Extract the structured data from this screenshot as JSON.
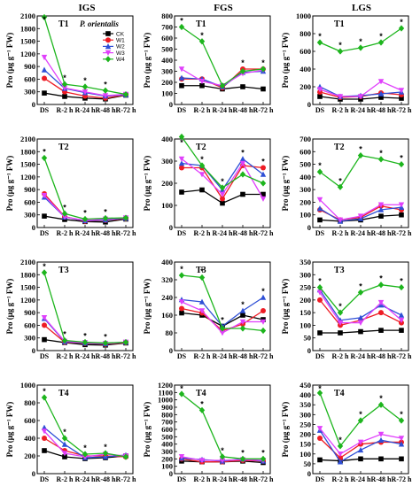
{
  "columns": [
    "IGS",
    "FGS",
    "LGS"
  ],
  "series_styles": [
    {
      "name": "CK",
      "color": "#000000",
      "marker": "square"
    },
    {
      "name": "W1",
      "color": "#ee1c25",
      "marker": "circle"
    },
    {
      "name": "W2",
      "color": "#2e4fd6",
      "marker": "triangle"
    },
    {
      "name": "W3",
      "color": "#e040fb",
      "marker": "triangle-down"
    },
    {
      "name": "W4",
      "color": "#1db51d",
      "marker": "diamond"
    }
  ],
  "legend": {
    "entries": [
      "CK",
      "W1",
      "W2",
      "W3",
      "W4"
    ],
    "placement": "top-right of first panel"
  },
  "annotation": "P. orientalis",
  "chart_data": [
    {
      "type": "line",
      "panel": "T1",
      "column": "IGS",
      "row": 1,
      "ylabel": "Pro (μg g⁻¹ FW)",
      "ylim": [
        0,
        2100
      ],
      "yticks": [
        0,
        300,
        600,
        900,
        1200,
        1500,
        1800,
        2100
      ],
      "categories": [
        "DS",
        "R-2 h",
        "R-24 h",
        "R-48 h",
        "R-72 h"
      ],
      "stars": [
        0,
        1,
        2,
        3
      ],
      "series": [
        {
          "name": "CK",
          "values": [
            270,
            190,
            150,
            130,
            220
          ]
        },
        {
          "name": "W1",
          "values": [
            620,
            300,
            200,
            150,
            230
          ]
        },
        {
          "name": "W2",
          "values": [
            820,
            380,
            280,
            200,
            230
          ]
        },
        {
          "name": "W3",
          "values": [
            1120,
            390,
            300,
            210,
            240
          ]
        },
        {
          "name": "W4",
          "values": [
            2070,
            480,
            420,
            330,
            240
          ]
        }
      ]
    },
    {
      "type": "line",
      "panel": "T1",
      "column": "FGS",
      "row": 1,
      "ylabel": "Pro (μg g⁻¹ FW)",
      "ylim": [
        0,
        800
      ],
      "yticks": [
        0,
        100,
        200,
        300,
        400,
        500,
        600,
        700,
        800
      ],
      "categories": [
        "DS",
        "R-2 h",
        "R-24 h",
        "R-48 h",
        "R-72 h"
      ],
      "stars": [
        0,
        1,
        3,
        4
      ],
      "series": [
        {
          "name": "CK",
          "values": [
            170,
            170,
            140,
            160,
            140
          ]
        },
        {
          "name": "W1",
          "values": [
            230,
            230,
            150,
            320,
            320
          ]
        },
        {
          "name": "W2",
          "values": [
            240,
            230,
            160,
            290,
            300
          ]
        },
        {
          "name": "W3",
          "values": [
            320,
            210,
            170,
            280,
            310
          ]
        },
        {
          "name": "W4",
          "values": [
            700,
            570,
            170,
            300,
            320
          ]
        }
      ]
    },
    {
      "type": "line",
      "panel": "T1",
      "column": "LGS",
      "row": 1,
      "ylabel": "Pro (μg g⁻¹ FW)",
      "ylim": [
        0,
        1000
      ],
      "yticks": [
        0,
        200,
        400,
        600,
        800,
        1000
      ],
      "categories": [
        "DS",
        "R-2 h",
        "R-24 h",
        "R-48 h",
        "R-72 h"
      ],
      "stars": [
        0,
        1,
        2,
        3,
        4
      ],
      "series": [
        {
          "name": "CK",
          "values": [
            90,
            60,
            60,
            80,
            70
          ]
        },
        {
          "name": "W1",
          "values": [
            140,
            80,
            90,
            130,
            110
          ]
        },
        {
          "name": "W2",
          "values": [
            200,
            90,
            100,
            120,
            140
          ]
        },
        {
          "name": "W3",
          "values": [
            170,
            90,
            90,
            260,
            160
          ]
        },
        {
          "name": "W4",
          "values": [
            700,
            600,
            640,
            700,
            860
          ]
        }
      ]
    },
    {
      "type": "line",
      "panel": "T2",
      "column": "IGS",
      "row": 2,
      "ylabel": "Pro (μg g⁻¹ FW)",
      "ylim": [
        0,
        2100
      ],
      "yticks": [
        0,
        300,
        600,
        900,
        1200,
        1500,
        1800,
        2100
      ],
      "categories": [
        "DS",
        "R-2 h",
        "R-24 h",
        "R-48 h",
        "R-72 h"
      ],
      "stars": [
        0,
        1,
        2,
        3
      ],
      "series": [
        {
          "name": "CK",
          "values": [
            270,
            190,
            140,
            130,
            200
          ]
        },
        {
          "name": "W1",
          "values": [
            800,
            260,
            150,
            170,
            210
          ]
        },
        {
          "name": "W2",
          "values": [
            720,
            250,
            160,
            180,
            220
          ]
        },
        {
          "name": "W3",
          "values": [
            760,
            250,
            170,
            200,
            230
          ]
        },
        {
          "name": "W4",
          "values": [
            1650,
            330,
            200,
            220,
            230
          ]
        }
      ]
    },
    {
      "type": "line",
      "panel": "T2",
      "column": "FGS",
      "row": 2,
      "ylabel": "Pro (μg g⁻¹ FW)",
      "ylim": [
        0,
        400
      ],
      "yticks": [
        0,
        100,
        200,
        300,
        400
      ],
      "categories": [
        "DS",
        "R-2 h",
        "R-24 h",
        "R-48 h",
        "R-72 h"
      ],
      "stars": [
        0,
        1,
        2,
        3,
        4
      ],
      "series": [
        {
          "name": "CK",
          "values": [
            160,
            170,
            110,
            150,
            150
          ]
        },
        {
          "name": "W1",
          "values": [
            270,
            270,
            130,
            280,
            270
          ]
        },
        {
          "name": "W2",
          "values": [
            290,
            280,
            170,
            310,
            240
          ]
        },
        {
          "name": "W3",
          "values": [
            310,
            240,
            150,
            290,
            130
          ]
        },
        {
          "name": "W4",
          "values": [
            410,
            280,
            180,
            240,
            200
          ]
        }
      ]
    },
    {
      "type": "line",
      "panel": "T2",
      "column": "LGS",
      "row": 2,
      "ylabel": "Pro (μg g⁻¹ FW)",
      "ylim": [
        0,
        700
      ],
      "yticks": [
        0,
        100,
        200,
        300,
        400,
        500,
        600,
        700
      ],
      "categories": [
        "DS",
        "R-2 h",
        "R-24 h",
        "R-48 h",
        "R-72 h"
      ],
      "stars": [
        0,
        1,
        2,
        3,
        4
      ],
      "series": [
        {
          "name": "CK",
          "values": [
            60,
            50,
            60,
            90,
            100
          ]
        },
        {
          "name": "W1",
          "values": [
            140,
            60,
            80,
            170,
            140
          ]
        },
        {
          "name": "W2",
          "values": [
            150,
            50,
            70,
            140,
            160
          ]
        },
        {
          "name": "W3",
          "values": [
            220,
            60,
            90,
            180,
            180
          ]
        },
        {
          "name": "W4",
          "values": [
            440,
            320,
            570,
            540,
            500
          ]
        }
      ]
    },
    {
      "type": "line",
      "panel": "T3",
      "column": "IGS",
      "row": 3,
      "ylabel": "Pro (μg g⁻¹ FW)",
      "ylim": [
        0,
        2100
      ],
      "yticks": [
        0,
        300,
        600,
        900,
        1200,
        1500,
        1800,
        2100
      ],
      "categories": [
        "DS",
        "R-2 h",
        "R-24 h",
        "R-48 h",
        "R-72 h"
      ],
      "stars": [
        0,
        1,
        2,
        3
      ],
      "series": [
        {
          "name": "CK",
          "values": [
            260,
            190,
            140,
            130,
            180
          ]
        },
        {
          "name": "W1",
          "values": [
            600,
            200,
            170,
            150,
            190
          ]
        },
        {
          "name": "W2",
          "values": [
            760,
            210,
            180,
            160,
            200
          ]
        },
        {
          "name": "W3",
          "values": [
            780,
            220,
            190,
            170,
            200
          ]
        },
        {
          "name": "W4",
          "values": [
            1850,
            240,
            200,
            180,
            200
          ]
        }
      ]
    },
    {
      "type": "line",
      "panel": "T3",
      "column": "FGS",
      "row": 3,
      "ylabel": "Pro (μg g⁻¹ FW)",
      "ylim": [
        0,
        400
      ],
      "yticks": [
        0,
        80,
        160,
        240,
        320,
        400
      ],
      "categories": [
        "DS",
        "R-2 h",
        "R-24 h",
        "R-48 h",
        "R-72 h"
      ],
      "stars": [
        0,
        1,
        2,
        3,
        4
      ],
      "series": [
        {
          "name": "CK",
          "values": [
            170,
            160,
            110,
            160,
            140
          ]
        },
        {
          "name": "W1",
          "values": [
            190,
            170,
            90,
            120,
            180
          ]
        },
        {
          "name": "W2",
          "values": [
            230,
            220,
            110,
            180,
            240
          ]
        },
        {
          "name": "W3",
          "values": [
            220,
            180,
            80,
            130,
            130
          ]
        },
        {
          "name": "W4",
          "values": [
            340,
            330,
            100,
            100,
            90
          ]
        }
      ]
    },
    {
      "type": "line",
      "panel": "T3",
      "column": "LGS",
      "row": 3,
      "ylabel": "Pro (μg g⁻¹ FW)",
      "ylim": [
        0,
        350
      ],
      "yticks": [
        0,
        50,
        100,
        150,
        200,
        250,
        300,
        350
      ],
      "categories": [
        "DS",
        "R-2 h",
        "R-24 h",
        "R-48 h",
        "R-72 h"
      ],
      "stars": [
        0,
        1,
        2,
        3,
        4
      ],
      "series": [
        {
          "name": "CK",
          "values": [
            70,
            70,
            75,
            80,
            80
          ]
        },
        {
          "name": "W1",
          "values": [
            200,
            100,
            120,
            150,
            110
          ]
        },
        {
          "name": "W2",
          "values": [
            240,
            120,
            130,
            180,
            140
          ]
        },
        {
          "name": "W3",
          "values": [
            230,
            110,
            110,
            190,
            120
          ]
        },
        {
          "name": "W4",
          "values": [
            250,
            150,
            230,
            260,
            250
          ]
        }
      ]
    },
    {
      "type": "line",
      "panel": "T4",
      "column": "IGS",
      "row": 4,
      "ylabel": "Pro (μg g⁻¹ FW)",
      "ylim": [
        0,
        1000
      ],
      "yticks": [
        0,
        200,
        400,
        600,
        800,
        1000
      ],
      "categories": [
        "DS",
        "R-2 h",
        "R-24 h",
        "R-48 h",
        "R-72 h"
      ],
      "stars": [
        0,
        1,
        2,
        3
      ],
      "series": [
        {
          "name": "CK",
          "values": [
            260,
            190,
            170,
            180,
            200
          ]
        },
        {
          "name": "W1",
          "values": [
            400,
            260,
            200,
            200,
            190
          ]
        },
        {
          "name": "W2",
          "values": [
            520,
            330,
            180,
            190,
            210
          ]
        },
        {
          "name": "W3",
          "values": [
            480,
            230,
            190,
            220,
            200
          ]
        },
        {
          "name": "W4",
          "values": [
            860,
            400,
            220,
            230,
            190
          ]
        }
      ]
    },
    {
      "type": "line",
      "panel": "T4",
      "column": "FGS",
      "row": 4,
      "ylabel": "Pro (μg g⁻¹ FW)",
      "ylim": [
        0,
        1200
      ],
      "yticks": [
        0,
        100,
        200,
        300,
        400,
        500,
        600,
        700,
        800,
        900,
        1000,
        1100,
        1200
      ],
      "categories": [
        "DS",
        "R-2 h",
        "R-24 h",
        "R-48 h",
        "R-72 h"
      ],
      "stars": [
        0,
        1,
        2,
        3,
        4
      ],
      "series": [
        {
          "name": "CK",
          "values": [
            170,
            160,
            160,
            170,
            150
          ]
        },
        {
          "name": "W1",
          "values": [
            200,
            160,
            160,
            180,
            170
          ]
        },
        {
          "name": "W2",
          "values": [
            210,
            190,
            170,
            200,
            170
          ]
        },
        {
          "name": "W3",
          "values": [
            230,
            180,
            180,
            190,
            180
          ]
        },
        {
          "name": "W4",
          "values": [
            1080,
            860,
            230,
            200,
            200
          ]
        }
      ]
    },
    {
      "type": "line",
      "panel": "T4",
      "column": "LGS",
      "row": 4,
      "ylabel": "Pro (μg g⁻¹ FW)",
      "ylim": [
        0,
        450
      ],
      "yticks": [
        0,
        50,
        100,
        150,
        200,
        250,
        300,
        350,
        400,
        450
      ],
      "categories": [
        "DS",
        "R-2 h",
        "R-24 h",
        "R-48 h",
        "R-72 h"
      ],
      "stars": [
        0,
        1,
        2,
        3,
        4
      ],
      "series": [
        {
          "name": "CK",
          "values": [
            70,
            65,
            75,
            75,
            75
          ]
        },
        {
          "name": "W1",
          "values": [
            180,
            80,
            150,
            160,
            160
          ]
        },
        {
          "name": "W2",
          "values": [
            220,
            60,
            120,
            170,
            150
          ]
        },
        {
          "name": "W3",
          "values": [
            230,
            100,
            160,
            200,
            180
          ]
        },
        {
          "name": "W4",
          "values": [
            410,
            140,
            270,
            350,
            270
          ]
        }
      ]
    }
  ]
}
